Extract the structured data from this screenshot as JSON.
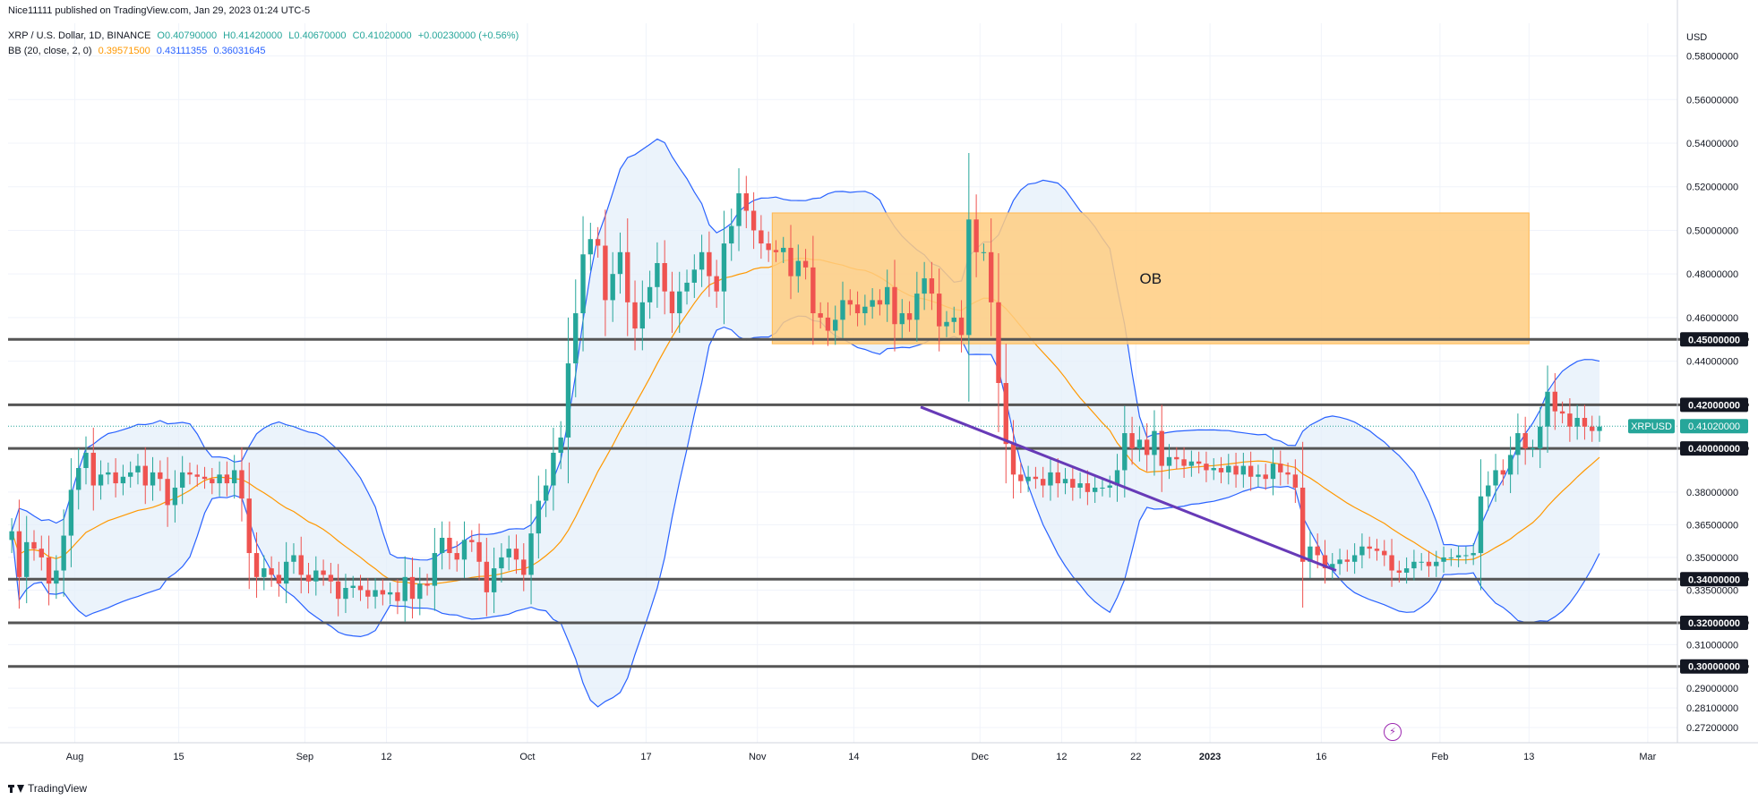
{
  "published": "Nice11111 published on TradingView.com, Jan 29, 2023 01:24 UTC-5",
  "legend": {
    "symbol": "XRP / U.S. Dollar, 1D, BINANCE",
    "open": "O0.40790000",
    "high": "H0.41420000",
    "low": "L0.40670000",
    "close": "C0.41020000",
    "change": "+0.00230000 (+0.56%)",
    "bb_label": "BB (20, close, 2, 0)",
    "bb_basis": "0.39571500",
    "bb_upper": "0.43111355",
    "bb_lower": "0.36031645"
  },
  "footer": {
    "brand": "TradingView"
  },
  "colors": {
    "up": "#26a69a",
    "down": "#ef5350",
    "basis": "#ff9800",
    "bands": "#2962ff",
    "band_fill": "#e3eefa",
    "ob_zone": "#ffcc80",
    "trendline": "#673ab7",
    "level": "#555555"
  },
  "chart_data": {
    "type": "candlestick",
    "symbol": "XRPUSD",
    "price_axis": {
      "unit": "USD",
      "range": [
        0.265,
        0.595
      ],
      "ticks": [
        0.58,
        0.56,
        0.54,
        0.52,
        0.5,
        0.48,
        0.46,
        0.44,
        0.38,
        0.365,
        0.35,
        0.335,
        0.31,
        0.29,
        0.281,
        0.272
      ],
      "tick_labels": [
        "0.58000000",
        "0.56000000",
        "0.54000000",
        "0.52000000",
        "0.50000000",
        "0.48000000",
        "0.46000000",
        "0.44000000",
        "0.38000000",
        "0.36500000",
        "0.35000000",
        "0.33500000",
        "0.31000000",
        "0.29000000",
        "0.28100000",
        "0.27200000"
      ]
    },
    "time_axis": {
      "start_date": "2022-07-23",
      "end_date": "2023-03-05",
      "labels": [
        {
          "date": "2022-08-01",
          "text": "Aug",
          "bold": false
        },
        {
          "date": "2022-08-15",
          "text": "15",
          "bold": false
        },
        {
          "date": "2022-09-01",
          "text": "Sep",
          "bold": false
        },
        {
          "date": "2022-09-12",
          "text": "12",
          "bold": false
        },
        {
          "date": "2022-10-01",
          "text": "Oct",
          "bold": false
        },
        {
          "date": "2022-10-17",
          "text": "17",
          "bold": false
        },
        {
          "date": "2022-11-01",
          "text": "Nov",
          "bold": false
        },
        {
          "date": "2022-11-14",
          "text": "14",
          "bold": false
        },
        {
          "date": "2022-12-01",
          "text": "Dec",
          "bold": false
        },
        {
          "date": "2022-12-12",
          "text": "12",
          "bold": false
        },
        {
          "date": "2022-12-22",
          "text": "22",
          "bold": false
        },
        {
          "date": "2023-01-01",
          "text": "2023",
          "bold": true
        },
        {
          "date": "2023-01-16",
          "text": "16",
          "bold": false
        },
        {
          "date": "2023-02-01",
          "text": "Feb",
          "bold": false
        },
        {
          "date": "2023-02-13",
          "text": "13",
          "bold": false
        },
        {
          "date": "2023-03-01",
          "text": "Mar",
          "bold": false
        }
      ]
    },
    "horizontal_levels": [
      {
        "price": 0.45,
        "label": "0.45000000"
      },
      {
        "price": 0.42,
        "label": "0.42000000"
      },
      {
        "price": 0.4,
        "label": "0.40000000"
      },
      {
        "price": 0.34,
        "label": "0.34000000"
      },
      {
        "price": 0.32,
        "label": "0.32000000"
      },
      {
        "price": 0.3,
        "label": "0.30000000"
      }
    ],
    "last_price": {
      "price": 0.4102,
      "label": "0.41020000",
      "tag": "XRPUSD"
    },
    "ob_zone": {
      "label": "OB",
      "start_date": "2022-11-03",
      "end_date": "2023-02-13",
      "top": 0.508,
      "bottom": 0.448
    },
    "trendline": {
      "start_date": "2022-11-23",
      "start_price": 0.419,
      "end_date": "2023-01-18",
      "end_price": 0.344
    },
    "closes": [
      0.362,
      0.341,
      0.357,
      0.354,
      0.35,
      0.338,
      0.344,
      0.36,
      0.381,
      0.391,
      0.398,
      0.383,
      0.388,
      0.389,
      0.384,
      0.387,
      0.389,
      0.392,
      0.383,
      0.389,
      0.386,
      0.374,
      0.382,
      0.389,
      0.388,
      0.387,
      0.386,
      0.384,
      0.388,
      0.384,
      0.39,
      0.377,
      0.352,
      0.341,
      0.345,
      0.342,
      0.338,
      0.348,
      0.351,
      0.342,
      0.339,
      0.344,
      0.342,
      0.339,
      0.331,
      0.336,
      0.337,
      0.335,
      0.332,
      0.335,
      0.333,
      0.334,
      0.33,
      0.341,
      0.331,
      0.338,
      0.337,
      0.352,
      0.359,
      0.352,
      0.349,
      0.358,
      0.357,
      0.348,
      0.334,
      0.345,
      0.35,
      0.354,
      0.349,
      0.342,
      0.361,
      0.376,
      0.383,
      0.398,
      0.405,
      0.439,
      0.462,
      0.489,
      0.496,
      0.493,
      0.468,
      0.48,
      0.49,
      0.467,
      0.455,
      0.467,
      0.474,
      0.485,
      0.472,
      0.462,
      0.472,
      0.476,
      0.482,
      0.49,
      0.479,
      0.472,
      0.494,
      0.502,
      0.517,
      0.509,
      0.5,
      0.494,
      0.491,
      0.49,
      0.492,
      0.479,
      0.486,
      0.483,
      0.462,
      0.46,
      0.454,
      0.459,
      0.468,
      0.466,
      0.462,
      0.465,
      0.468,
      0.466,
      0.474,
      0.457,
      0.462,
      0.459,
      0.471,
      0.478,
      0.471,
      0.456,
      0.458,
      0.46,
      0.452,
      0.505,
      0.49,
      0.49,
      0.467,
      0.43,
      0.402,
      0.388,
      0.385,
      0.387,
      0.386,
      0.383,
      0.389,
      0.384,
      0.386,
      0.382,
      0.384,
      0.38,
      0.382,
      0.382,
      0.383,
      0.39,
      0.407,
      0.4,
      0.404,
      0.397,
      0.408,
      0.392,
      0.396,
      0.395,
      0.392,
      0.394,
      0.393,
      0.39,
      0.391,
      0.389,
      0.392,
      0.388,
      0.392,
      0.387,
      0.388,
      0.386,
      0.393,
      0.389,
      0.388,
      0.382,
      0.348,
      0.355,
      0.351,
      0.345,
      0.347,
      0.349,
      0.348,
      0.351,
      0.355,
      0.354,
      0.353,
      0.351,
      0.344,
      0.343,
      0.345,
      0.348,
      0.348,
      0.346,
      0.348,
      0.35,
      0.35,
      0.351,
      0.351,
      0.352,
      0.378,
      0.383,
      0.39,
      0.388,
      0.397,
      0.407,
      0.4,
      0.4,
      0.41,
      0.426,
      0.417,
      0.416,
      0.41,
      0.414,
      0.41,
      0.408,
      0.41
    ],
    "bb_basis_last": 0.395715,
    "bb_upper_last": 0.43111355,
    "bb_lower_last": 0.36031645,
    "grid": true
  }
}
